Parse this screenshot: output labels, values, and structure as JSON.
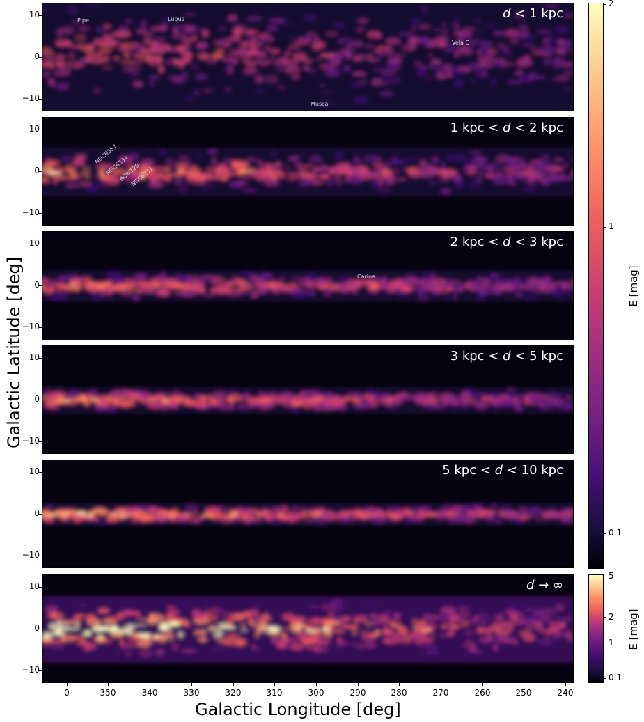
{
  "figure": {
    "x_axis_title": "Galactic Longitude [deg]",
    "y_axis_title": "Galactic Latitude [deg]",
    "x_ticks": [
      "0",
      "350",
      "340",
      "330",
      "320",
      "310",
      "300",
      "290",
      "280",
      "270",
      "260",
      "250",
      "240"
    ],
    "y_ticks": [
      "10",
      "0",
      "−10"
    ]
  },
  "panels": [
    {
      "title_pre": "",
      "title_var": "d",
      "title_post": " < 1 kpc",
      "regions": [
        "Pipe",
        "Lupus",
        "Vela C",
        "Musca"
      ]
    },
    {
      "title_pre": "1 kpc  < ",
      "title_var": "d",
      "title_post": " < 2 kpc",
      "regions": [
        "NGC6357",
        "NGC6334",
        "RCW120",
        "NGC6231"
      ]
    },
    {
      "title_pre": "2 kpc  < ",
      "title_var": "d",
      "title_post": " < 3 kpc",
      "regions": [
        "Carina"
      ]
    },
    {
      "title_pre": "3 kpc  < ",
      "title_var": "d",
      "title_post": " < 5 kpc",
      "regions": []
    },
    {
      "title_pre": "5 kpc  < ",
      "title_var": "d",
      "title_post": " < 10 kpc",
      "regions": []
    },
    {
      "title_pre": "",
      "title_var": "d",
      "title_post": " → ∞",
      "regions": []
    }
  ],
  "colorbar_top": {
    "title": "E [mag]",
    "tick_labels": [
      "2",
      "1",
      "0.1"
    ]
  },
  "colorbar_bottom": {
    "title": "E [mag]",
    "tick_labels": [
      "5",
      "2",
      "1",
      "0.1"
    ]
  },
  "colors": {
    "dark": "#05030e",
    "mid": "#7b2382",
    "hot": "#f1605d",
    "bright": "#fcfdbf"
  }
}
